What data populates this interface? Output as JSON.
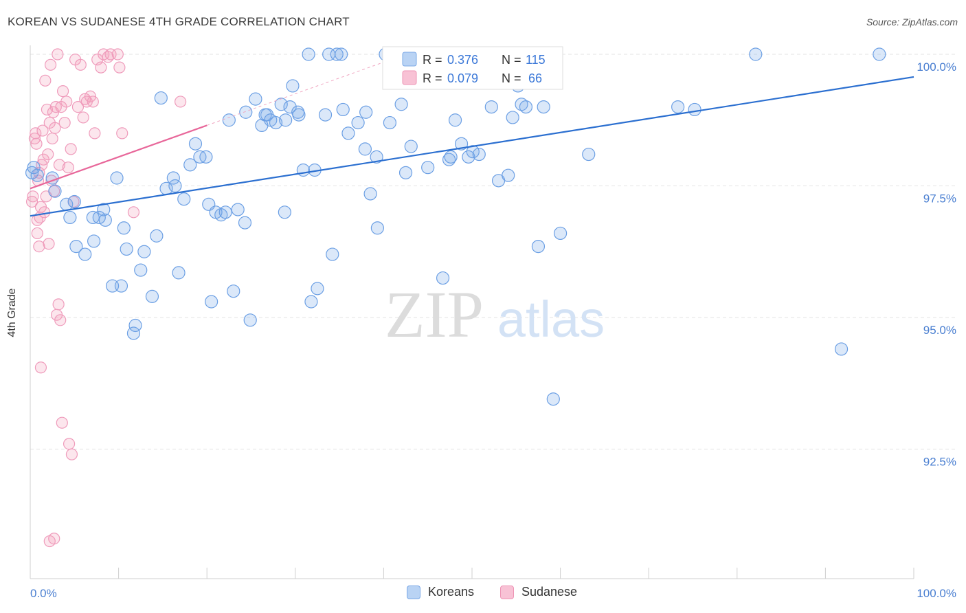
{
  "title": "KOREAN VS SUDANESE 4TH GRADE CORRELATION CHART",
  "source": "Source: ZipAtlas.com",
  "watermark": {
    "zip": "ZIP",
    "atlas": "atlas"
  },
  "legend_box": {
    "rows": [
      {
        "r_label": "R =",
        "r_value": "0.376",
        "n_label": "N =",
        "n_value": "115"
      },
      {
        "r_label": "R =",
        "r_value": "0.079",
        "n_label": "N =",
        "n_value": "66"
      }
    ]
  },
  "legend_bottom": {
    "items": [
      "Koreans",
      "Sudanese"
    ]
  },
  "chart_data": {
    "type": "scatter",
    "title": "KOREAN VS SUDANESE 4TH GRADE CORRELATION CHART",
    "xlabel": "",
    "ylabel": "4th Grade",
    "xlim": [
      0,
      100
    ],
    "ylim": [
      90.3,
      100.5
    ],
    "x_tick_labels": [
      "0.0%",
      "100.0%"
    ],
    "y_ticks": [
      92.5,
      95.0,
      97.5,
      100.0
    ],
    "y_tick_labels": [
      "92.5%",
      "95.0%",
      "97.5%",
      "100.0%"
    ],
    "grid": "horizontal dashed",
    "legend_position": "top-center",
    "colors": {
      "koreans": "#6fa3e8",
      "koreans_trend": "#2b6fd0",
      "sudanese": "#f29ab8",
      "sudanese_trend": "#e8679a",
      "tick_label": "#4a7fd1"
    },
    "series": [
      {
        "name": "Koreans",
        "color": "#6fa3e8",
        "r": 0.376,
        "n": 115,
        "trend": {
          "x0": 0,
          "y0": 96.93,
          "x1": 100,
          "y1": 99.57
        },
        "points": [
          [
            0.2,
            97.75
          ],
          [
            0.4,
            97.85
          ],
          [
            0.8,
            97.7
          ],
          [
            2.5,
            97.65
          ],
          [
            2.8,
            97.4
          ],
          [
            4.1,
            97.15
          ],
          [
            4.5,
            96.9
          ],
          [
            5.0,
            97.2
          ],
          [
            5.2,
            96.35
          ],
          [
            6.2,
            96.2
          ],
          [
            7.2,
            96.45
          ],
          [
            7.1,
            96.9
          ],
          [
            7.8,
            96.9
          ],
          [
            8.5,
            96.85
          ],
          [
            8.3,
            97.05
          ],
          [
            9.3,
            95.6
          ],
          [
            9.8,
            97.65
          ],
          [
            10.3,
            95.6
          ],
          [
            10.6,
            96.7
          ],
          [
            10.9,
            96.3
          ],
          [
            11.7,
            94.7
          ],
          [
            11.9,
            94.85
          ],
          [
            12.5,
            95.9
          ],
          [
            12.9,
            96.25
          ],
          [
            13.8,
            95.4
          ],
          [
            14.3,
            96.55
          ],
          [
            14.8,
            99.17
          ],
          [
            15.4,
            97.45
          ],
          [
            16.2,
            97.65
          ],
          [
            16.4,
            97.5
          ],
          [
            16.8,
            95.85
          ],
          [
            17.4,
            97.25
          ],
          [
            18.1,
            97.9
          ],
          [
            18.7,
            98.3
          ],
          [
            19.2,
            98.05
          ],
          [
            19.9,
            98.05
          ],
          [
            20.2,
            97.15
          ],
          [
            20.5,
            95.3
          ],
          [
            21.0,
            97.0
          ],
          [
            21.6,
            96.95
          ],
          [
            22.1,
            97.0
          ],
          [
            22.5,
            98.75
          ],
          [
            23.0,
            95.5
          ],
          [
            23.5,
            97.05
          ],
          [
            24.3,
            96.8
          ],
          [
            24.4,
            98.9
          ],
          [
            24.9,
            94.95
          ],
          [
            25.5,
            99.15
          ],
          [
            26.2,
            98.65
          ],
          [
            26.6,
            98.85
          ],
          [
            26.8,
            98.85
          ],
          [
            27.2,
            98.75
          ],
          [
            27.8,
            98.7
          ],
          [
            28.4,
            99.05
          ],
          [
            28.8,
            97.0
          ],
          [
            28.9,
            98.75
          ],
          [
            29.4,
            99.0
          ],
          [
            29.7,
            99.4
          ],
          [
            30.3,
            98.9
          ],
          [
            30.4,
            98.85
          ],
          [
            30.9,
            97.8
          ],
          [
            31.5,
            100.0
          ],
          [
            31.8,
            95.3
          ],
          [
            32.2,
            97.8
          ],
          [
            32.5,
            95.55
          ],
          [
            33.4,
            98.85
          ],
          [
            33.8,
            100.0
          ],
          [
            34.2,
            96.2
          ],
          [
            34.7,
            100.0
          ],
          [
            35.2,
            100.0
          ],
          [
            35.4,
            98.95
          ],
          [
            36.0,
            98.5
          ],
          [
            37.1,
            98.7
          ],
          [
            37.9,
            98.2
          ],
          [
            38.0,
            98.9
          ],
          [
            38.5,
            97.35
          ],
          [
            39.2,
            98.05
          ],
          [
            39.3,
            96.7
          ],
          [
            40.2,
            100.0
          ],
          [
            40.7,
            98.7
          ],
          [
            41.2,
            100.0
          ],
          [
            42.0,
            99.05
          ],
          [
            42.5,
            97.75
          ],
          [
            43.1,
            98.25
          ],
          [
            45.0,
            97.85
          ],
          [
            46.6,
            100.0
          ],
          [
            46.7,
            95.75
          ],
          [
            47.4,
            98.0
          ],
          [
            47.6,
            98.05
          ],
          [
            48.1,
            98.75
          ],
          [
            48.8,
            98.3
          ],
          [
            49.6,
            98.05
          ],
          [
            50.1,
            98.15
          ],
          [
            50.8,
            98.1
          ],
          [
            52.2,
            99.0
          ],
          [
            53.0,
            97.6
          ],
          [
            54.1,
            97.7
          ],
          [
            54.6,
            98.8
          ],
          [
            55.2,
            99.4
          ],
          [
            55.6,
            99.05
          ],
          [
            56.1,
            99.0
          ],
          [
            57.5,
            96.35
          ],
          [
            58.1,
            99.0
          ],
          [
            59.2,
            93.45
          ],
          [
            60.0,
            96.6
          ],
          [
            63.2,
            98.1
          ],
          [
            73.3,
            99.0
          ],
          [
            75.2,
            98.95
          ],
          [
            82.1,
            100.0
          ],
          [
            91.8,
            94.4
          ],
          [
            96.1,
            100.0
          ]
        ]
      },
      {
        "name": "Sudanese",
        "color": "#f29ab8",
        "r": 0.079,
        "n": 66,
        "trend": {
          "x0": 0,
          "y0": 97.45,
          "x1": 20,
          "y1": 98.65
        },
        "points": [
          [
            0.2,
            97.2
          ],
          [
            0.3,
            97.3
          ],
          [
            0.5,
            98.4
          ],
          [
            0.6,
            98.5
          ],
          [
            0.7,
            98.3
          ],
          [
            0.8,
            96.6
          ],
          [
            0.9,
            97.6
          ],
          [
            1.0,
            97.75
          ],
          [
            1.1,
            96.9
          ],
          [
            1.2,
            97.1
          ],
          [
            1.3,
            97.9
          ],
          [
            1.4,
            98.55
          ],
          [
            1.5,
            98.0
          ],
          [
            1.6,
            97.0
          ],
          [
            1.7,
            99.5
          ],
          [
            1.8,
            97.3
          ],
          [
            1.9,
            98.95
          ],
          [
            2.0,
            98.1
          ],
          [
            2.1,
            96.4
          ],
          [
            2.2,
            98.7
          ],
          [
            2.3,
            99.8
          ],
          [
            2.4,
            97.6
          ],
          [
            2.5,
            98.4
          ],
          [
            2.6,
            98.9
          ],
          [
            2.7,
            97.4
          ],
          [
            2.8,
            98.6
          ],
          [
            2.9,
            99.0
          ],
          [
            3.1,
            100.0
          ],
          [
            3.3,
            97.9
          ],
          [
            3.5,
            99.0
          ],
          [
            3.7,
            99.3
          ],
          [
            3.9,
            98.7
          ],
          [
            4.1,
            99.1
          ],
          [
            4.3,
            97.85
          ],
          [
            4.6,
            98.2
          ],
          [
            4.9,
            97.2
          ],
          [
            5.1,
            99.9
          ],
          [
            5.4,
            99.0
          ],
          [
            5.7,
            99.8
          ],
          [
            6.0,
            98.8
          ],
          [
            6.2,
            99.15
          ],
          [
            6.4,
            99.1
          ],
          [
            6.8,
            99.2
          ],
          [
            7.1,
            99.1
          ],
          [
            7.3,
            98.5
          ],
          [
            7.6,
            99.9
          ],
          [
            8.0,
            99.75
          ],
          [
            8.3,
            100.0
          ],
          [
            8.8,
            99.95
          ],
          [
            9.1,
            100.0
          ],
          [
            9.9,
            100.0
          ],
          [
            10.1,
            99.75
          ],
          [
            10.4,
            98.5
          ],
          [
            11.7,
            97.0
          ],
          [
            17.0,
            99.1
          ],
          [
            1.2,
            94.05
          ],
          [
            2.2,
            90.75
          ],
          [
            2.7,
            90.8
          ],
          [
            3.0,
            95.05
          ],
          [
            3.2,
            95.25
          ],
          [
            3.4,
            94.95
          ],
          [
            3.6,
            93.0
          ],
          [
            4.4,
            92.6
          ],
          [
            4.7,
            92.4
          ],
          [
            0.8,
            96.85
          ],
          [
            1.0,
            96.35
          ]
        ]
      }
    ]
  }
}
